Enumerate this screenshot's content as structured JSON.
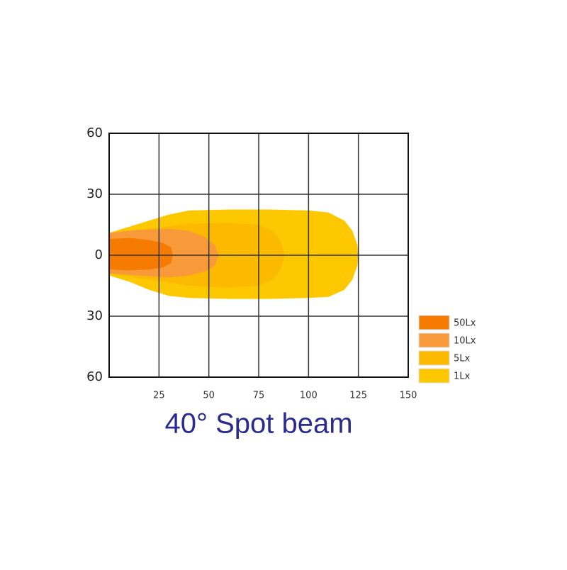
{
  "chart_data": {
    "type": "contour",
    "title": "40° Spot beam",
    "xlim": [
      0,
      150
    ],
    "ylim": [
      -60,
      60
    ],
    "xticks": [
      25,
      50,
      75,
      100,
      125,
      150
    ],
    "yticks": [
      60,
      30,
      0,
      {
        "value": -30,
        "label": "30"
      },
      {
        "value": -60,
        "label": "60"
      }
    ],
    "grid": true,
    "legend": "right-bottom",
    "series": [
      {
        "name": "50Lx",
        "color": "#f57c00",
        "x": [
          0,
          10,
          20,
          27,
          31,
          32,
          31,
          27,
          20,
          10,
          0
        ],
        "values": [
          8,
          8.5,
          7.5,
          6,
          4,
          0,
          -4,
          -6,
          -7,
          -7.5,
          -7
        ]
      },
      {
        "name": "10Lx",
        "color": "#f99a3a",
        "x": [
          0,
          15,
          30,
          40,
          48,
          53,
          55,
          53,
          48,
          40,
          30,
          15,
          0
        ],
        "values": [
          11,
          12.5,
          13,
          12,
          9,
          5,
          0,
          -5,
          -8,
          -10,
          -11,
          -10,
          -9
        ]
      },
      {
        "name": "5Lx",
        "color": "#fbb900",
        "x": [
          0,
          20,
          40,
          60,
          75,
          82,
          86,
          88,
          86,
          82,
          75,
          60,
          40,
          20,
          0
        ],
        "values": [
          10,
          13,
          15.5,
          16,
          15,
          12,
          7,
          0,
          -7,
          -12,
          -15,
          -16,
          -15,
          -12,
          -9
        ]
      },
      {
        "name": "1Lx",
        "color": "#fdc800",
        "x": [
          0,
          10,
          20,
          30,
          40,
          60,
          80,
          100,
          110,
          118,
          122,
          124.5,
          125,
          124.5,
          122,
          118,
          110,
          100,
          80,
          60,
          40,
          30,
          20,
          10,
          0
        ],
        "values": [
          11,
          14,
          17,
          20,
          22,
          22.5,
          22.5,
          22,
          21,
          17,
          12,
          5,
          0,
          -5,
          -12,
          -17,
          -20.5,
          -21,
          -21.5,
          -21.5,
          -21,
          -20,
          -17,
          -13,
          -10
        ]
      }
    ]
  }
}
